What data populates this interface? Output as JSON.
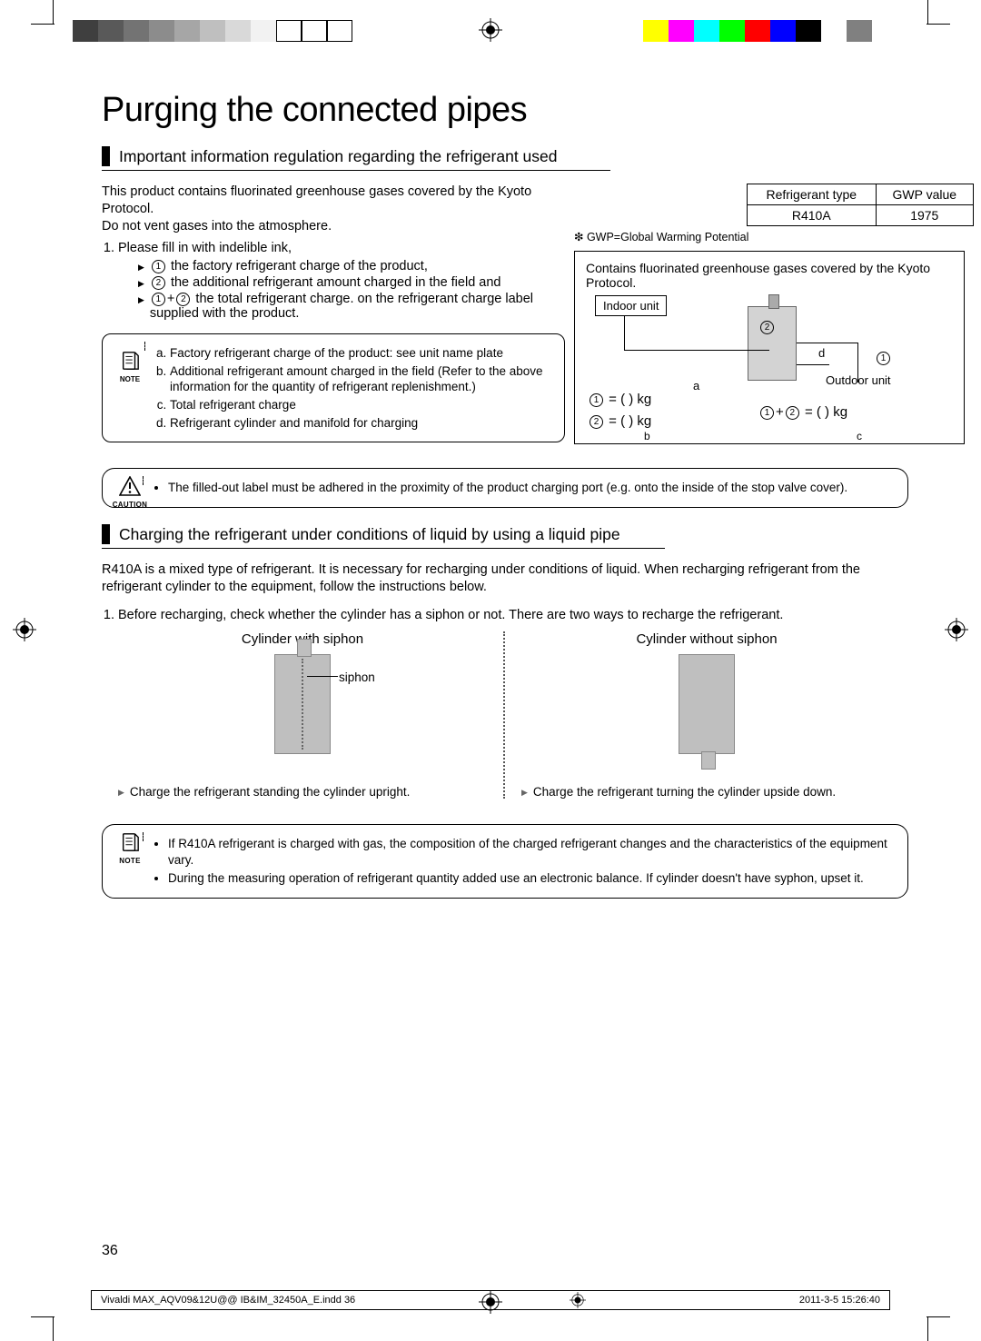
{
  "colorbar_left": [
    "#3f3f3f",
    "#595959",
    "#737373",
    "#8c8c8c",
    "#a6a6a6",
    "#bfbfbf",
    "#d9d9d9",
    "#f2f2f2",
    "#ffffff",
    "#ffffff",
    "#ffffff"
  ],
  "colorbar_right": [
    "#ffff00",
    "#ff00ff",
    "#00ffff",
    "#00ff00",
    "#ff0000",
    "#0000ff",
    "#000000",
    "#ffffff",
    "#808080"
  ],
  "page": {
    "title": "Purging the connected pipes",
    "section1_title": "Important information regulation regarding the refrigerant used",
    "intro1": "This product contains ﬂuorinated greenhouse gases covered by the Kyoto Protocol.",
    "intro2": "Do not vent gases into the atmosphere.",
    "list1_lead": "Please ﬁll in with indelible ink,",
    "bullet1": "the factory refrigerant charge of the product,",
    "bullet2": "the additional refrigerant amount charged in the ﬁeld and",
    "bullet3_pre": "the total refrigerant charge. on the refrigerant charge label supplied with the product.",
    "ref_table": {
      "h1": "Refrigerant type",
      "h2": "GWP value",
      "v1": "R410A",
      "v2": "1975"
    },
    "gwp_note": "❇ GWP=Global Warming Potential",
    "label_box": {
      "head": "Contains ﬂuorinated greenhouse gases covered by the Kyoto Protocol.",
      "indoor": "Indoor unit",
      "outdoor": "Outdoor unit",
      "a": "a",
      "b": "b",
      "c": "c",
      "d": "d",
      "eq1": "= (            ) kg",
      "eq2": "= (            ) kg",
      "eq3": "= (            ) kg"
    },
    "note_items": {
      "a": "Factory refrigerant charge of the product: see unit name plate",
      "b": "Additional refrigerant amount charged in the ﬁeld (Refer to the above information for the quantity of refrigerant replenishment.)",
      "c": "Total refrigerant charge",
      "d": "Refrigerant cylinder and manifold for charging"
    },
    "caution_text": "The filled-out label must be adhered in the proximity of the product charging port (e.g. onto the inside of the stop valve cover).",
    "caution_label": "CAUTION",
    "note_label": "NOTE",
    "section2_title": "Charging the refrigerant under conditions of liquid by using a liquid pipe",
    "section2_body": "R410A is a mixed type of refrigerant. It is necessary for recharging under conditions of liquid. When recharging refrigerant from the refrigerant cylinder to the equipment, follow the instructions below.",
    "section2_list1": "Before recharging, check whether the cylinder has a siphon or not. There are two ways to recharge the refrigerant.",
    "cyl_left_title": "Cylinder with siphon",
    "cyl_right_title": "Cylinder without siphon",
    "siphon": "siphon",
    "cyl_left_note": "Charge the refrigerant standing the cylinder upright.",
    "cyl_right_note": "Charge the refrigerant turning the cylinder upside down.",
    "final_note_1": "If R410A refrigerant is charged with gas, the composition of the charged refrigerant changes and the characteristics of the equipment vary.",
    "final_note_2": "During the measuring operation of refrigerant quantity added use an electronic balance. If cylinder doesn't have syphon, upset it.",
    "page_number": "36",
    "imprint_left": "Vivaldi MAX_AQV09&12U@@ IB&IM_32450A_E.indd   36",
    "imprint_right": "2011-3-5   15:26:40"
  }
}
